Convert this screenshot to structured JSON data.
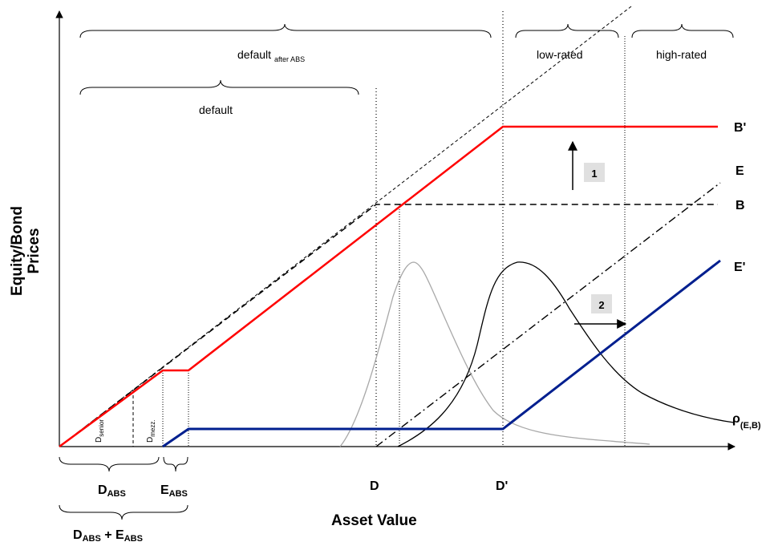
{
  "axes": {
    "y_title_line1": "Equity/Bond",
    "y_title_line2": "Prices",
    "x_title": "Asset Value"
  },
  "regions": {
    "default_after_abs_main": "default",
    "default_after_abs_sub": "after ABS",
    "default": "default",
    "low_rated": "low-rated",
    "high_rated": "high-rated"
  },
  "curves": {
    "b_prime": "B'",
    "e": "E",
    "b": "B",
    "e_prime": "E'",
    "rho_main": "ρ",
    "rho_sub": "(E,B)"
  },
  "boxes": {
    "box1": "1",
    "box2": "2"
  },
  "x_points": {
    "d": "D",
    "d_prime": "D'"
  },
  "tranches": {
    "d_senior_main": "D",
    "d_senior_sub": "senior",
    "d_mezz_main": "D",
    "d_mezz_sub": "mezz."
  },
  "abs_labels": {
    "d_abs_main": "D",
    "d_abs_sub": "ABS",
    "e_abs_main": "E",
    "e_abs_sub": "ABS",
    "sum_d_main": "D",
    "sum_d_sub": "ABS",
    "sum_plus": " + ",
    "sum_e_main": "E",
    "sum_e_sub": "ABS"
  },
  "colors": {
    "red_line": "#ff0000",
    "blue_line": "#001f8f",
    "gray_density": "#a8a8a8",
    "box_fill": "#e0e0e0"
  }
}
